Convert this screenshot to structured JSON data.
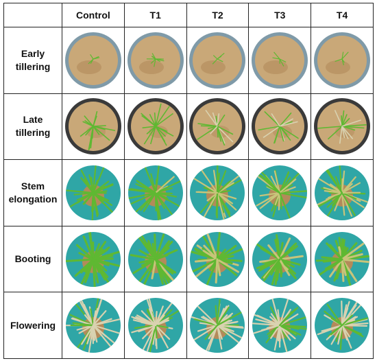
{
  "columns": [
    "Control",
    "T1",
    "T2",
    "T3",
    "T4"
  ],
  "rows": [
    {
      "label": "Early\ntillering",
      "style": "early"
    },
    {
      "label": "Late\ntillering",
      "style": "late"
    },
    {
      "label": "Stem\nelongation",
      "style": "stem"
    },
    {
      "label": "Booting",
      "style": "boot"
    },
    {
      "label": "Flowering",
      "style": "flower"
    }
  ],
  "colors": {
    "soil": "#c9a878",
    "soil_wet": "#b38a5a",
    "pot_rim": "#7f9aa8",
    "pot_dark": "#3a3a3a",
    "leaf_green": "#5fb832",
    "leaf_yellow": "#c8c47a",
    "leaf_dry": "#d9d2b0",
    "background_teal": "#2fa6a6"
  }
}
